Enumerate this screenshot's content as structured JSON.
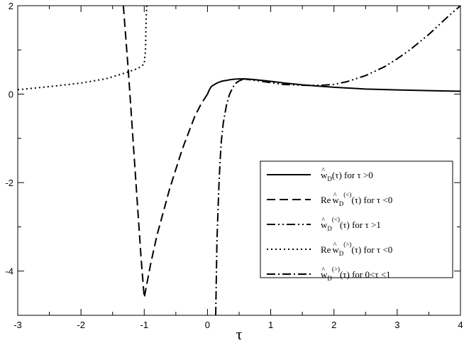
{
  "chart_data": {
    "type": "line",
    "xlabel": "τ",
    "ylabel": "",
    "xlim": [
      -3,
      4
    ],
    "ylim": [
      -5,
      2
    ],
    "xticks": [
      -3,
      -2,
      -1,
      0,
      1,
      2,
      3,
      4
    ],
    "yticks": [
      -4,
      -2,
      0,
      2
    ],
    "grid": false,
    "legend_position": "lower-right",
    "series": [
      {
        "name": "ŵD(τ) for τ>0",
        "style": "solid",
        "x": [
          0.0,
          0.03,
          0.06,
          0.1,
          0.15,
          0.2,
          0.25,
          0.3,
          0.35,
          0.4,
          0.45,
          0.5,
          0.55,
          0.6,
          0.7,
          0.8,
          1.0,
          1.2,
          1.5,
          2.0,
          2.5,
          3.0,
          3.5,
          4.0
        ],
        "y": [
          0.0,
          0.1,
          0.17,
          0.21,
          0.25,
          0.28,
          0.3,
          0.31,
          0.325,
          0.335,
          0.34,
          0.345,
          0.345,
          0.345,
          0.335,
          0.32,
          0.29,
          0.255,
          0.21,
          0.155,
          0.115,
          0.095,
          0.08,
          0.065
        ]
      },
      {
        "name": "Re ŵD(<)(τ) for τ<0",
        "style": "dashed",
        "x": [
          -1.33,
          -1.25,
          -1.15,
          -1.05,
          -1.0,
          -0.9,
          -0.8,
          -0.6,
          -0.4,
          -0.2,
          -0.1,
          0.0
        ],
        "y": [
          2.0,
          0.5,
          -1.6,
          -3.7,
          -4.6,
          -3.85,
          -3.2,
          -2.15,
          -1.25,
          -0.5,
          -0.22,
          0.0
        ]
      },
      {
        "name": "ŵD(<)(τ) for τ>1",
        "style": "dashdotdot",
        "x": [
          0.55,
          0.6,
          0.8,
          1.0,
          1.2,
          1.5,
          1.8,
          2.0,
          2.2,
          2.5,
          2.8,
          3.0,
          3.2,
          3.5,
          3.8,
          4.0
        ],
        "y": [
          0.345,
          0.34,
          0.3,
          0.26,
          0.22,
          0.2,
          0.2,
          0.22,
          0.28,
          0.42,
          0.62,
          0.8,
          1.0,
          1.35,
          1.75,
          2.0
        ]
      },
      {
        "name": "Re ŵD(>)(τ) for τ<0",
        "style": "dotted",
        "x": [
          -3.0,
          -2.5,
          -2.0,
          -1.6,
          -1.3,
          -1.1,
          -1.0,
          -0.98,
          -0.97,
          -0.96
        ],
        "y": [
          0.1,
          0.17,
          0.25,
          0.35,
          0.48,
          0.58,
          0.68,
          1.0,
          1.7,
          2.0
        ]
      },
      {
        "name": "ŵD(>)(τ) for 0<τ<1",
        "style": "dashdot",
        "x": [
          0.13,
          0.15,
          0.18,
          0.2,
          0.22,
          0.25,
          0.3,
          0.35,
          0.4,
          0.45,
          0.5,
          0.55,
          0.6
        ],
        "y": [
          -5.0,
          -3.3,
          -2.1,
          -1.5,
          -1.05,
          -0.65,
          -0.25,
          0.0,
          0.15,
          0.25,
          0.3,
          0.33,
          0.345
        ]
      }
    ],
    "legend": [
      {
        "pre": "",
        "hat": "^",
        "w": "w",
        "sub": "D",
        "sup": "",
        "post": "(τ) for  τ >0"
      },
      {
        "pre": "Re ",
        "hat": "^",
        "w": "w",
        "sub": "D",
        "sup": "(<)",
        "post": "(τ) for τ <0"
      },
      {
        "pre": "",
        "hat": "^",
        "w": "w",
        "sub": "D",
        "sup": "(<)",
        "post": "(τ) for τ >1"
      },
      {
        "pre": "Re ",
        "hat": "^",
        "w": "w",
        "sub": "D",
        "sup": "(>)",
        "post": "(τ) for τ <0"
      },
      {
        "pre": "",
        "hat": "^",
        "w": "w",
        "sub": "D",
        "sup": "(>)",
        "post": "(τ) for 0<τ <1"
      }
    ]
  }
}
